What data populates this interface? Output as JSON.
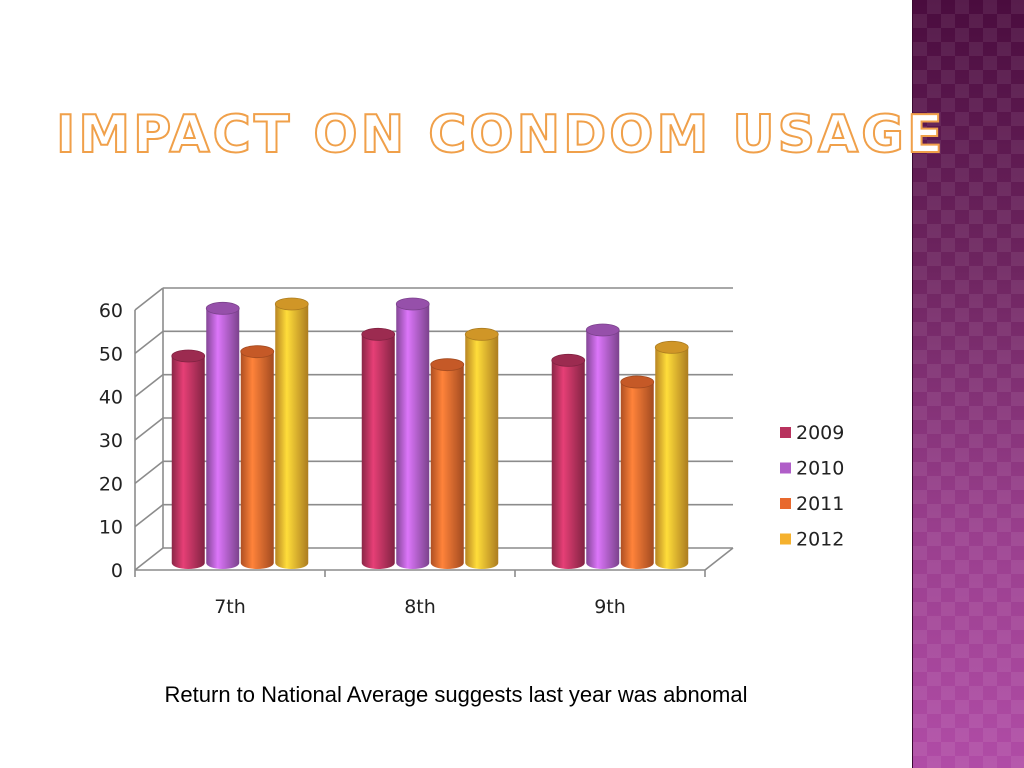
{
  "slide": {
    "title": "Impact on Condom Usage",
    "caption": "Return to National Average suggests last year was abnomal"
  },
  "chart_data": {
    "type": "bar",
    "categories": [
      "7th",
      "8th",
      "9th"
    ],
    "series": [
      {
        "name": "2009",
        "values": [
          48,
          53,
          47
        ],
        "color": "#b8325e"
      },
      {
        "name": "2010",
        "values": [
          59,
          60,
          54
        ],
        "color": "#b05ec8"
      },
      {
        "name": "2011",
        "values": [
          49,
          46,
          42
        ],
        "color": "#e8692e"
      },
      {
        "name": "2012",
        "values": [
          60,
          53,
          50
        ],
        "color": "#f5b12e"
      }
    ],
    "yticks": [
      "0",
      "10",
      "20",
      "30",
      "40",
      "50",
      "60"
    ],
    "ylim": [
      0,
      60
    ],
    "grid": true,
    "legend": "right"
  },
  "colors": {
    "title_outline": "#f0a04a",
    "side_band": "#6e2560"
  }
}
